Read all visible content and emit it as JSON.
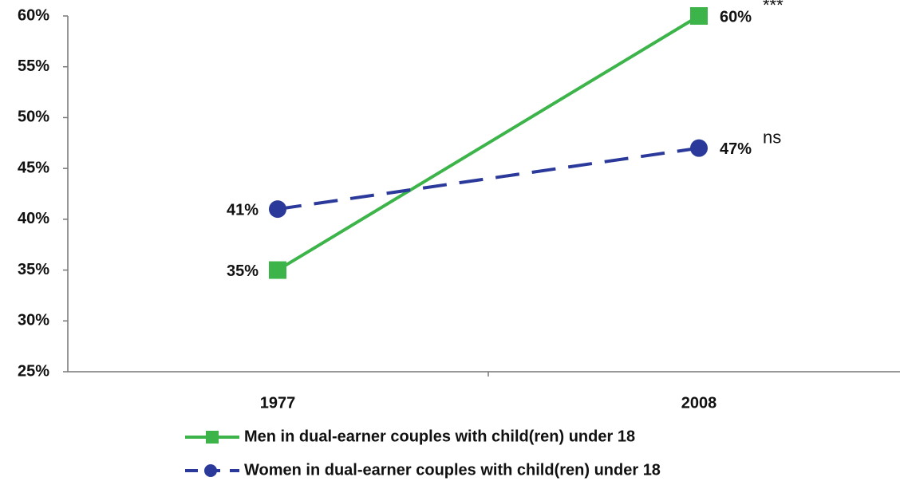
{
  "chart_data": {
    "type": "line",
    "categories": [
      "1977",
      "2008"
    ],
    "series": [
      {
        "name": "Men in dual-earner couples with child(ren) under 18",
        "color": "#3cb44a",
        "values": [
          35,
          60
        ],
        "value_labels": [
          "35%",
          "60%"
        ],
        "marker": "square",
        "dash": false
      },
      {
        "name": "Women in dual-earner couples with child(ren) under 18",
        "color": "#2b3a9a",
        "values": [
          41,
          47
        ],
        "value_labels": [
          "41%",
          "47%"
        ],
        "marker": "circle",
        "dash": true
      }
    ],
    "annotations": [
      "***",
      "ns"
    ],
    "ylim": [
      25,
      60
    ],
    "yticks": [
      {
        "value": 25,
        "label": "25%"
      },
      {
        "value": 30,
        "label": "30%"
      },
      {
        "value": 35,
        "label": "35%"
      },
      {
        "value": 40,
        "label": "40%"
      },
      {
        "value": 45,
        "label": "45%"
      },
      {
        "value": 50,
        "label": "50%"
      },
      {
        "value": 55,
        "label": "55%"
      },
      {
        "value": 60,
        "label": "60%"
      }
    ],
    "legend": "bottom"
  }
}
